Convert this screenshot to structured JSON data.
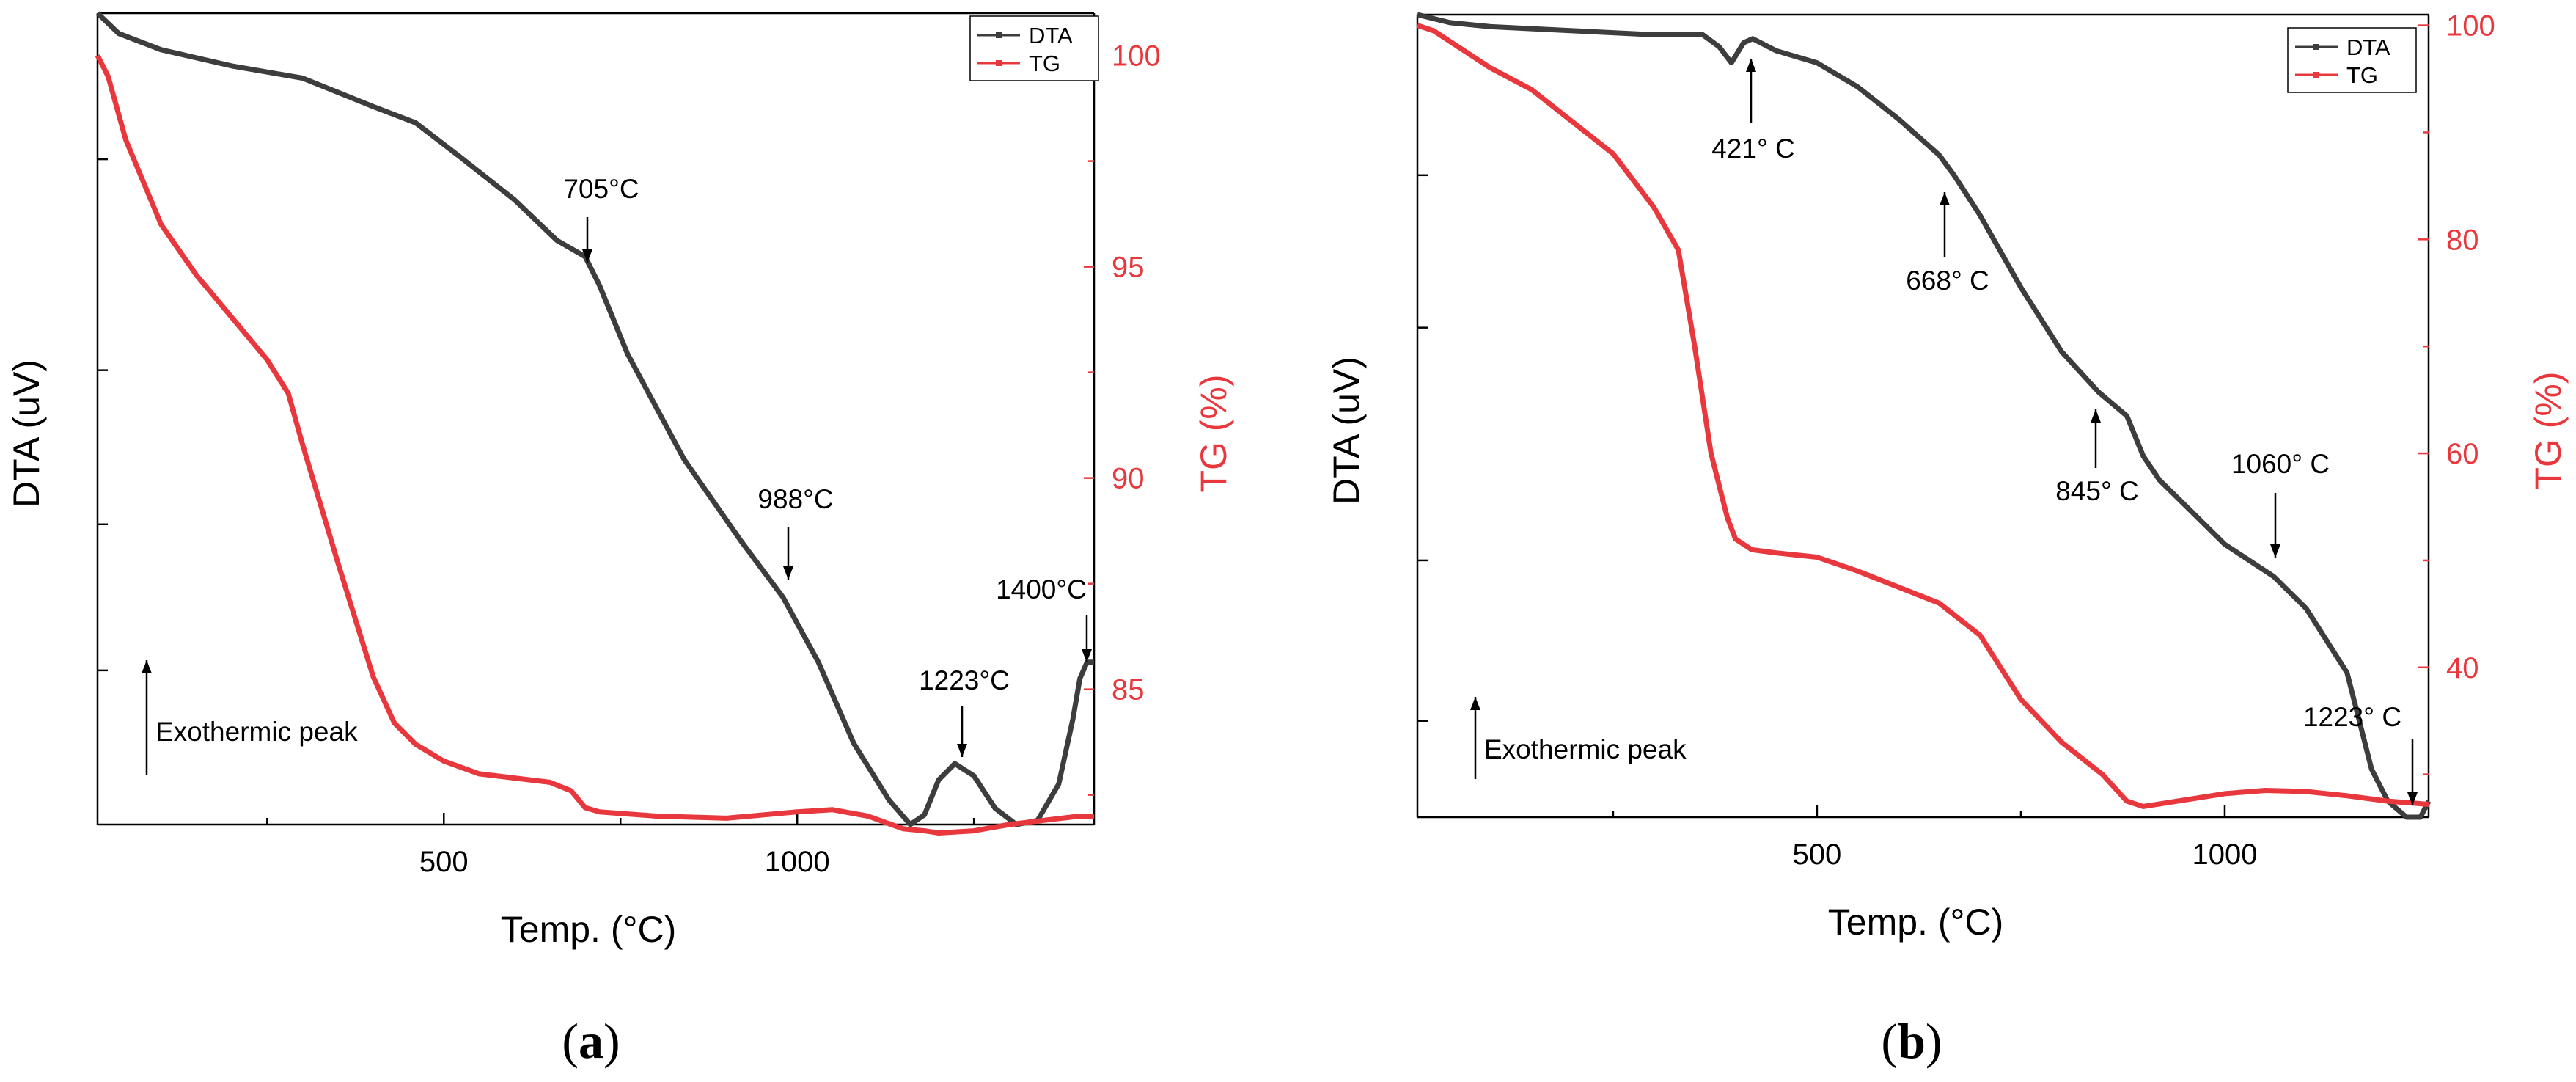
{
  "colors": {
    "dta": "#3d3d3d",
    "tg": "#e8383d",
    "axis": "#000000"
  },
  "chart_data": [
    {
      "id": "a",
      "type": "line",
      "panel_label": "a",
      "xlabel": "Temp. (°C)",
      "ylabel_left": "DTA (uV)",
      "ylabel_right": "TG (%)",
      "xlim": [
        10,
        1420
      ],
      "x_ticks": [
        500,
        1000
      ],
      "x_tick_labels": [
        "500",
        "1000"
      ],
      "y_left_lim": [
        0,
        1
      ],
      "y_right_lim": [
        81.8,
        101
      ],
      "y_right_ticks": [
        85,
        90,
        95,
        100
      ],
      "y_right_tick_labels": [
        "85",
        "90",
        "95",
        "100"
      ],
      "legend": [
        "DTA",
        "TG"
      ],
      "series": [
        {
          "name": "DTA",
          "axis": "left",
          "x": [
            10,
            40,
            100,
            200,
            300,
            400,
            460,
            520,
            600,
            660,
            700,
            720,
            760,
            840,
            920,
            980,
            1030,
            1080,
            1130,
            1160,
            1180,
            1200,
            1223,
            1250,
            1280,
            1310,
            1340,
            1370,
            1390,
            1400,
            1410,
            1420
          ],
          "y": [
            1.0,
            0.975,
            0.955,
            0.935,
            0.92,
            0.885,
            0.865,
            0.825,
            0.77,
            0.72,
            0.7,
            0.665,
            0.58,
            0.45,
            0.35,
            0.28,
            0.2,
            0.1,
            0.03,
            0.0,
            0.012,
            0.055,
            0.075,
            0.06,
            0.02,
            0.0,
            0.005,
            0.05,
            0.13,
            0.18,
            0.2,
            0.2
          ]
        },
        {
          "name": "TG",
          "axis": "right",
          "x": [
            10,
            25,
            50,
            100,
            150,
            200,
            250,
            280,
            300,
            350,
            400,
            430,
            460,
            500,
            550,
            600,
            650,
            680,
            700,
            720,
            800,
            900,
            1000,
            1050,
            1100,
            1150,
            1180,
            1200,
            1250,
            1300,
            1350,
            1400,
            1420
          ],
          "y": [
            100.0,
            99.5,
            98.0,
            96.0,
            94.8,
            93.8,
            92.8,
            92.0,
            90.8,
            88.0,
            85.3,
            84.2,
            83.7,
            83.3,
            83.0,
            82.9,
            82.8,
            82.6,
            82.2,
            82.1,
            82.0,
            81.95,
            82.1,
            82.15,
            82.0,
            81.7,
            81.65,
            81.6,
            81.65,
            81.8,
            81.9,
            82.0,
            82.0
          ]
        }
      ],
      "annotations": [
        {
          "text": "705°C",
          "x": 705,
          "dir": "down"
        },
        {
          "text": "988°C",
          "x": 988,
          "dir": "down"
        },
        {
          "text": "1223°C",
          "x": 1223,
          "dir": "down"
        },
        {
          "text": "1400°C",
          "x": 1400,
          "dir": "down"
        }
      ],
      "note": "Exothermic peak"
    },
    {
      "id": "b",
      "type": "line",
      "panel_label": "b",
      "xlabel": "Temp. (°C)",
      "ylabel_left": "DTA (uV)",
      "ylabel_right": "TG (%)",
      "xlim": [
        10,
        1250
      ],
      "x_ticks": [
        500,
        1000
      ],
      "x_tick_labels": [
        "500",
        "1000"
      ],
      "y_left_lim": [
        0,
        1
      ],
      "y_right_lim": [
        26,
        101
      ],
      "y_right_ticks": [
        40,
        60,
        80,
        100
      ],
      "y_right_tick_labels": [
        "40",
        "60",
        "80",
        "100"
      ],
      "legend": [
        "DTA",
        "TG"
      ],
      "series": [
        {
          "name": "DTA",
          "axis": "left",
          "x": [
            10,
            50,
            100,
            200,
            300,
            360,
            380,
            395,
            410,
            421,
            450,
            500,
            550,
            600,
            650,
            668,
            700,
            750,
            800,
            845,
            880,
            900,
            920,
            950,
            1000,
            1060,
            1100,
            1150,
            1180,
            1200,
            1223,
            1240,
            1250
          ],
          "y": [
            1.0,
            0.99,
            0.985,
            0.98,
            0.975,
            0.975,
            0.96,
            0.94,
            0.965,
            0.97,
            0.955,
            0.94,
            0.91,
            0.87,
            0.825,
            0.8,
            0.75,
            0.66,
            0.58,
            0.53,
            0.5,
            0.45,
            0.42,
            0.39,
            0.34,
            0.3,
            0.26,
            0.18,
            0.06,
            0.02,
            0.0,
            0.0,
            0.02
          ]
        },
        {
          "name": "TG",
          "axis": "right",
          "x": [
            10,
            30,
            60,
            100,
            150,
            200,
            250,
            300,
            330,
            350,
            370,
            390,
            400,
            410,
            420,
            450,
            500,
            550,
            600,
            650,
            700,
            750,
            800,
            850,
            880,
            900,
            950,
            1000,
            1050,
            1100,
            1150,
            1200,
            1250
          ],
          "y": [
            100.0,
            99.5,
            98.0,
            96.0,
            94.0,
            91.0,
            88.0,
            83.0,
            79.0,
            70.0,
            60.0,
            54.0,
            52.0,
            51.5,
            51.0,
            50.7,
            50.3,
            49.0,
            47.5,
            46.0,
            43.0,
            37.0,
            33.0,
            30.0,
            27.5,
            27.0,
            27.6,
            28.2,
            28.5,
            28.4,
            28.0,
            27.5,
            27.2
          ]
        }
      ],
      "annotations": [
        {
          "text": "421° C",
          "x": 421,
          "dir": "up"
        },
        {
          "text": "668° C",
          "x": 668,
          "dir": "up"
        },
        {
          "text": "845° C",
          "x": 845,
          "dir": "up"
        },
        {
          "text": "1060° C",
          "x": 1060,
          "dir": "down"
        },
        {
          "text": "1223° C",
          "x": 1223,
          "dir": "down"
        }
      ],
      "note": "Exothermic peak"
    }
  ]
}
